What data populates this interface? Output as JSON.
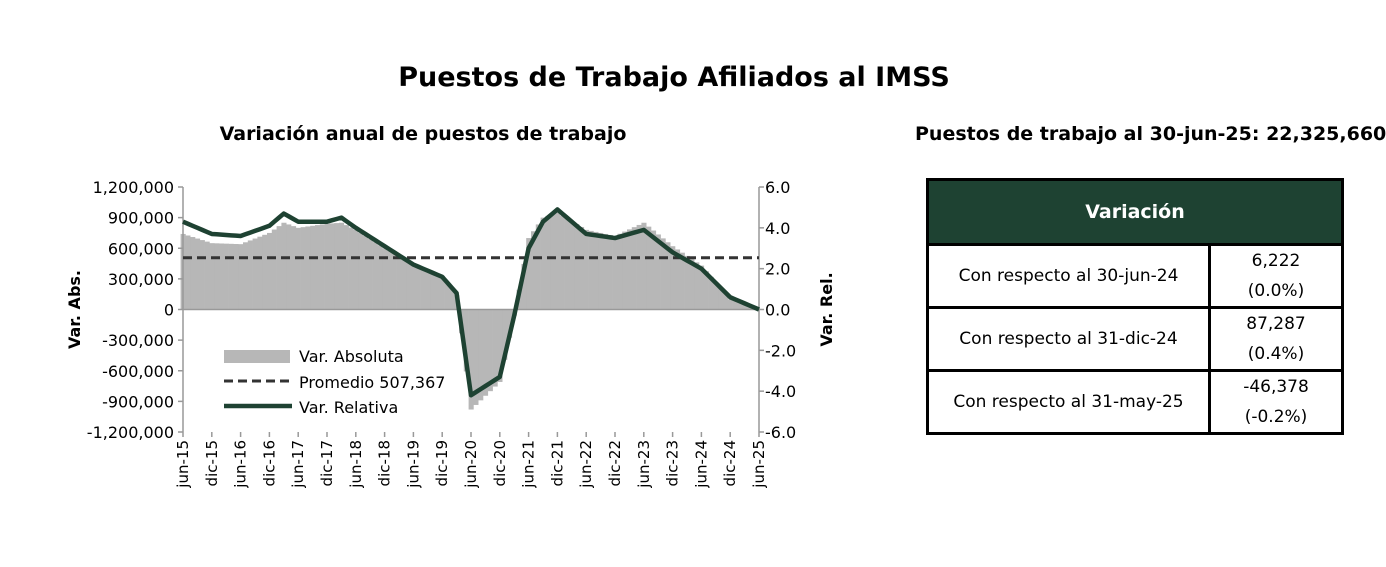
{
  "page": {
    "title": "Puestos de Trabajo Afiliados al IMSS",
    "total_title": "Puestos de trabajo al 30-jun-25: 22,325,660"
  },
  "table": {
    "header": "Variación",
    "rows": [
      {
        "label": "Con respecto al 30-jun-24",
        "value": "6,222",
        "pct": "(0.0%)"
      },
      {
        "label": "Con respecto al 31-dic-24",
        "value": "87,287",
        "pct": "(0.4%)"
      },
      {
        "label": "Con respecto al 31-may-25",
        "value": "-46,378",
        "pct": "(-0.2%)"
      }
    ]
  },
  "colors": {
    "bars": "#b7b7b7",
    "line": "#1e4232",
    "average": "#333333",
    "table_header": "#1e4232"
  },
  "chart_data": {
    "type": "bar+line",
    "title": "Variación anual de puestos de trabajo",
    "ylabel_left": "Var. Abs.",
    "ylabel_right": "Var. Rel.",
    "ylim_left": [
      -1200000,
      1200000
    ],
    "ylim_right": [
      -6.0,
      6.0
    ],
    "yticks_left": [
      "1,200,000",
      "900,000",
      "600,000",
      "300,000",
      "0",
      "-300,000",
      "-600,000",
      "-900,000",
      "-1,200,000"
    ],
    "yticks_right": [
      "6.0",
      "4.0",
      "2.0",
      "0.0",
      "-2.0",
      "-4.0",
      "-6.0"
    ],
    "x_tick_labels": [
      "jun-15",
      "dic-15",
      "jun-16",
      "dic-16",
      "jun-17",
      "dic-17",
      "jun-18",
      "dic-18",
      "jun-19",
      "dic-19",
      "jun-20",
      "dic-20",
      "jun-21",
      "dic-21",
      "jun-22",
      "dic-22",
      "jun-23",
      "dic-23",
      "jun-24",
      "dic-24",
      "jun-25"
    ],
    "average": 507367,
    "legend": [
      "Var. Absoluta",
      "Promedio 507,367",
      "Var. Relativa"
    ],
    "legend_position": "lower-left",
    "anchors_abs": [
      [
        "jun-15",
        740000
      ],
      [
        "dic-15",
        650000
      ],
      [
        "jun-16",
        640000
      ],
      [
        "dic-16",
        750000
      ],
      [
        "mar-17",
        850000
      ],
      [
        "jun-17",
        800000
      ],
      [
        "dic-17",
        840000
      ],
      [
        "mar-18",
        850000
      ],
      [
        "jun-18",
        780000
      ],
      [
        "dic-18",
        600000
      ],
      [
        "jun-19",
        450000
      ],
      [
        "dic-19",
        330000
      ],
      [
        "mar-20",
        140000
      ],
      [
        "jun-20",
        -980000
      ],
      [
        "dic-20",
        -710000
      ],
      [
        "mar-21",
        -60000
      ],
      [
        "jun-21",
        700000
      ],
      [
        "sep-21",
        900000
      ],
      [
        "dic-21",
        950000
      ],
      [
        "jun-22",
        780000
      ],
      [
        "dic-22",
        720000
      ],
      [
        "jun-23",
        850000
      ],
      [
        "dic-23",
        620000
      ],
      [
        "jun-24",
        430000
      ],
      [
        "dic-24",
        100000
      ],
      [
        "jun-25",
        6000
      ]
    ],
    "anchors_rel": [
      [
        "jun-15",
        4.3
      ],
      [
        "dic-15",
        3.7
      ],
      [
        "jun-16",
        3.6
      ],
      [
        "dic-16",
        4.1
      ],
      [
        "mar-17",
        4.7
      ],
      [
        "jun-17",
        4.3
      ],
      [
        "dic-17",
        4.3
      ],
      [
        "mar-18",
        4.5
      ],
      [
        "jun-18",
        4.0
      ],
      [
        "dic-18",
        3.1
      ],
      [
        "jun-19",
        2.2
      ],
      [
        "dic-19",
        1.6
      ],
      [
        "mar-20",
        0.8
      ],
      [
        "jun-20",
        -4.2
      ],
      [
        "dic-20",
        -3.3
      ],
      [
        "mar-21",
        -0.3
      ],
      [
        "jun-21",
        3.0
      ],
      [
        "sep-21",
        4.3
      ],
      [
        "dic-21",
        4.9
      ],
      [
        "jun-22",
        3.7
      ],
      [
        "dic-22",
        3.5
      ],
      [
        "jun-23",
        3.9
      ],
      [
        "dic-23",
        2.8
      ],
      [
        "jun-24",
        2.0
      ],
      [
        "dic-24",
        0.6
      ],
      [
        "jun-25",
        0.0
      ]
    ]
  }
}
